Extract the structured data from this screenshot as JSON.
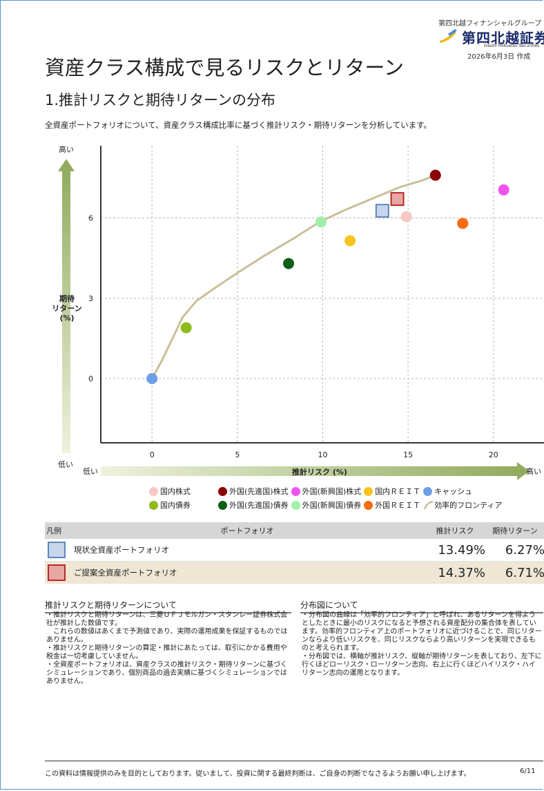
{
  "brand": {
    "group": "第四北越フィナンシャルグループ",
    "name": "第四北越証券",
    "en": "Daishi Hokuetsu Securities",
    "date": "2026年6月3日 作成",
    "mark_colors": [
      "#f2b61d",
      "#4a8fd6"
    ]
  },
  "page_title": "資産クラス構成で見るリスクとリターン",
  "section_title": "1.推計リスクと期待リターンの分布",
  "lead": "全資産ポートフォリオについて、資産クラス構成比率に基づく推計リスク・期待リターンを分析しています。",
  "chart_data": {
    "type": "scatter",
    "xlabel": "推計リスク (%)",
    "ylabel": "期待リターン(%)",
    "ylabel_lines": [
      "期待",
      "リターン",
      "(%)"
    ],
    "x_low": "低い",
    "x_high": "高い",
    "y_high": "高い",
    "y_low": "低い",
    "xlim": [
      -3,
      23
    ],
    "ylim": [
      -2.4,
      8.7
    ],
    "xticks": [
      0,
      5,
      10,
      15,
      20
    ],
    "yticks": [
      0,
      3,
      6
    ],
    "grid": true,
    "legend_position": "bottom",
    "frontier": {
      "name": "効率的フロンティア",
      "color": "#c9bf96",
      "points": [
        [
          0,
          0
        ],
        [
          0.6,
          0.7
        ],
        [
          1.2,
          1.5
        ],
        [
          1.8,
          2.3
        ],
        [
          2.6,
          2.9
        ],
        [
          3.6,
          3.35
        ],
        [
          5,
          3.95
        ],
        [
          6.6,
          4.6
        ],
        [
          8.2,
          5.2
        ],
        [
          9.8,
          5.85
        ],
        [
          11.3,
          6.3
        ],
        [
          13,
          6.75
        ],
        [
          14.5,
          7.15
        ],
        [
          15.8,
          7.4
        ],
        [
          16.6,
          7.6
        ]
      ]
    },
    "assets": [
      {
        "name": "国内株式",
        "x": 14.9,
        "y": 6.05,
        "color": "#f9c6c6"
      },
      {
        "name": "外国(先進国)株式",
        "x": 16.6,
        "y": 7.6,
        "color": "#8b0000"
      },
      {
        "name": "外国(新興国)株式",
        "x": 20.6,
        "y": 7.05,
        "color": "#ee55ee"
      },
      {
        "name": "国内ＲＥＩＴ",
        "x": 11.6,
        "y": 5.15,
        "color": "#f7c31c"
      },
      {
        "name": "キャッシュ",
        "x": 0,
        "y": 0,
        "color": "#6f9ee8"
      },
      {
        "name": "国内債券",
        "x": 2,
        "y": 1.9,
        "color": "#8dbb1d"
      },
      {
        "name": "外国(先進国)債券",
        "x": 8,
        "y": 4.3,
        "color": "#0b5f16"
      },
      {
        "name": "外国(新興国)債券",
        "x": 9.9,
        "y": 5.85,
        "color": "#9ff0a8"
      },
      {
        "name": "外国ＲＥＩＴ",
        "x": 18.2,
        "y": 5.8,
        "color": "#f66a12"
      }
    ],
    "portfolios": [
      {
        "name": "現状全資産ポートフォリオ",
        "x": 13.49,
        "y": 6.27,
        "fill": "#c7d6ea",
        "stroke": "#5b86bd"
      },
      {
        "name": "ご提案全資産ポートフォリオ",
        "x": 14.37,
        "y": 6.71,
        "fill": "#e8a6a2",
        "stroke": "#b52a2a"
      }
    ]
  },
  "legend_rows": [
    [
      {
        "name": "国内株式",
        "color": "#f9c6c6"
      },
      {
        "name": "外国(先進国)株式",
        "color": "#8b0000"
      },
      {
        "name": "外国(新興国)株式",
        "color": "#ee55ee"
      },
      {
        "name": "国内ＲＥＩＴ",
        "color": "#f7c31c"
      },
      {
        "name": "キャッシュ",
        "color": "#6f9ee8"
      }
    ],
    [
      {
        "name": "国内債券",
        "color": "#8dbb1d"
      },
      {
        "name": "外国(先進国)債券",
        "color": "#0b5f16"
      },
      {
        "name": "外国(新興国)債券",
        "color": "#9ff0a8"
      },
      {
        "name": "外国ＲＥＩＴ",
        "color": "#f66a12"
      }
    ]
  ],
  "frontier_legend": "効率的フロンティア",
  "table": {
    "headers": [
      "凡例",
      "ポートフォリオ",
      "推計リスク",
      "期待リターン"
    ],
    "rows": [
      {
        "name": "現状全資産ポートフォリオ",
        "risk": "13.49%",
        "ret": "6.27%",
        "fill": "#c7d6ea",
        "stroke": "#5b86bd"
      },
      {
        "name": "ご提案全資産ポートフォリオ",
        "risk": "14.37%",
        "ret": "6.71%",
        "fill": "#e8a6a2",
        "stroke": "#b52a2a"
      }
    ]
  },
  "note_left": {
    "title": "推計リスクと期待リターンについて",
    "bullets": [
      "・推計リスクと期待リターンは、三菱ＵＦＪモルガン・スタンレー証券株式会社が推計した数値です。",
      "　これらの数値はあくまで予測値であり、実際の運用成果を保証するものではありません。",
      "・推計リスクと期待リターンの算定・推計にあたっては、取引にかかる費用や税金は一切考慮していません。",
      "・全資産ポートフォリオは、資産クラスの推計リスク・期待リターンに基づくシミュレーションであり、個別商品の過去実績に基づくシミュレーションではありません。"
    ]
  },
  "note_right": {
    "title": "分布図について",
    "bullets": [
      "・分布図の曲線は「効率的フロンティア」と呼ばれ、あるリターンを得ようとしたときに最小のリスクになると予想される資産配分の集合体を表しています。効率的フロンティア上のポートフォリオに近づけることで、同じリターンならより低いリスクを、同じリスクならより高いリターンを実現できるものと考えられます。",
      "・分布図では、横軸が推計リスク、縦軸が期待リターンを表しており、左下に行くほどローリスク・ローリターン志向、右上に行くほどハイリスク・ハイリターン志向の運用となります。"
    ]
  },
  "footer": "この資料は情報提供のみを目的としております。従いまして、投資に関する最終判断は、ご自身の判断でなさるようお願い申し上げます。",
  "page_number": "6/11"
}
